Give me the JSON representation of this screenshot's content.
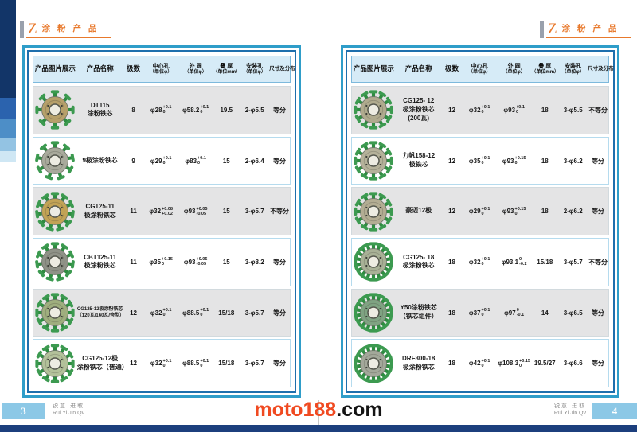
{
  "page_title": {
    "prefix": "Z",
    "label": "涂 粉 产 品"
  },
  "watermark": {
    "brand": "moto188",
    "suffix": ".com"
  },
  "colors": {
    "accent_orange": "#e8792c",
    "watermark_orange": "#f04a21",
    "frame_outer_blue": "#2f9dc9",
    "frame_inner_blue": "#1e6fad",
    "header_bg_blue": "#d6ebf7",
    "row_alt_gray": "#e4e4e5",
    "footer_bar_blue": "#8cc8e6",
    "bottom_bar_navy": "#1c3f7d"
  },
  "table_columns": [
    {
      "key": "product-image",
      "label": "产品图片展示",
      "sub": ""
    },
    {
      "key": "product-name",
      "label": "产品名称",
      "sub": ""
    },
    {
      "key": "pole-count",
      "label": "极数",
      "sub": ""
    },
    {
      "key": "center-hole",
      "label": "中心孔",
      "sub": "（单位φ）"
    },
    {
      "key": "outer-diameter",
      "label": "外 圆",
      "sub": "（单位φ）"
    },
    {
      "key": "thickness",
      "label": "叠 厚",
      "sub": "（单位mm）"
    },
    {
      "key": "mount-holes",
      "label": "安装孔",
      "sub": "（单位φ）"
    },
    {
      "key": "distribution",
      "label": "尺寸及分布",
      "sub": ""
    }
  ],
  "pages": [
    {
      "page_number": "3",
      "footer": {
        "cn": "锐意 进取",
        "en": "Rui Yi Jin Qv"
      },
      "rows": [
        {
          "name": [
            "DT115",
            "涂粉铁芯"
          ],
          "poles": "8",
          "center_hole": {
            "base": "φ28",
            "upper": "+0.1",
            "lower": "0"
          },
          "outer_dia": {
            "base": "φ58.2",
            "upper": "+0.1",
            "lower": "0"
          },
          "thickness": "19.5",
          "mount": "2-φ5.5",
          "dist": "等分",
          "tone": "#b6a06a"
        },
        {
          "name": [
            "9极涂粉铁芯"
          ],
          "poles": "9",
          "center_hole": {
            "base": "φ29",
            "upper": "+0.1",
            "lower": "0"
          },
          "outer_dia": {
            "base": "φ83",
            "upper": "+0.1",
            "lower": "0"
          },
          "thickness": "15",
          "mount": "2-φ6.4",
          "dist": "等分",
          "tone": "#a9aa9c"
        },
        {
          "name": [
            "CG125-11",
            "极涂粉铁芯"
          ],
          "poles": "11",
          "center_hole": {
            "base": "φ32",
            "upper": "+0.08",
            "lower": "+0.02"
          },
          "outer_dia": {
            "base": "φ93",
            "upper": "+0.05",
            "lower": "-0.05"
          },
          "thickness": "15",
          "mount": "3-φ5.7",
          "dist": "不等分",
          "tone": "#c2a355"
        },
        {
          "name": [
            "CBT125-11",
            "极涂粉铁芯"
          ],
          "poles": "11",
          "center_hole": {
            "base": "φ35",
            "upper": "+0.15",
            "lower": "0"
          },
          "outer_dia": {
            "base": "φ93",
            "upper": "+0.05",
            "lower": "-0.05"
          },
          "thickness": "15",
          "mount": "3-φ8.2",
          "dist": "等分",
          "tone": "#8f9287"
        },
        {
          "name": [
            "CG125-12极涂粉铁芯",
            "（120瓦/160瓦/侉型）"
          ],
          "poles": "12",
          "center_hole": {
            "base": "φ32",
            "upper": "+0.1",
            "lower": "0"
          },
          "outer_dia": {
            "base": "φ88.5",
            "upper": "+0.1",
            "lower": "0"
          },
          "thickness": "15/18",
          "mount": "3-φ5.7",
          "dist": "等分",
          "tone": "#9fae7e"
        },
        {
          "name": [
            "CG125-12极",
            "涂粉铁芯（普通）"
          ],
          "poles": "12",
          "center_hole": {
            "base": "φ32",
            "upper": "+0.1",
            "lower": "0"
          },
          "outer_dia": {
            "base": "φ88.5",
            "upper": "+0.1",
            "lower": "0"
          },
          "thickness": "15/18",
          "mount": "3-φ5.7",
          "dist": "等分",
          "tone": "#b3c19a"
        }
      ]
    },
    {
      "page_number": "4",
      "footer": {
        "cn": "锐意 进取",
        "en": "Rui Yi Jin Qv"
      },
      "rows": [
        {
          "name": [
            "CG125- 12",
            "极涂粉铁芯",
            "(200瓦)"
          ],
          "poles": "12",
          "center_hole": {
            "base": "φ32",
            "upper": "+0.1",
            "lower": "0"
          },
          "outer_dia": {
            "base": "φ93",
            "upper": "+0.1",
            "lower": "0"
          },
          "thickness": "18",
          "mount": "3-φ5.5",
          "dist": "不等分",
          "tone": "#b0ab8e"
        },
        {
          "name": [
            "力帆158-12",
            "极铁芯"
          ],
          "poles": "12",
          "center_hole": {
            "base": "φ35",
            "upper": "+0.1",
            "lower": "0"
          },
          "outer_dia": {
            "base": "φ93",
            "upper": "+0.15",
            "lower": "0"
          },
          "thickness": "18",
          "mount": "3-φ6.2",
          "dist": "等分",
          "tone": "#b5b29a"
        },
        {
          "name": [
            "豪迈12极"
          ],
          "poles": "12",
          "center_hole": {
            "base": "φ29",
            "upper": "+0.1",
            "lower": "0"
          },
          "outer_dia": {
            "base": "φ93",
            "upper": "+0.15",
            "lower": "0"
          },
          "thickness": "18",
          "mount": "2-φ6.2",
          "dist": "等分",
          "tone": "#b3ad93"
        },
        {
          "name": [
            "CG125- 18",
            "极涂粉铁芯"
          ],
          "poles": "18",
          "center_hole": {
            "base": "φ32",
            "upper": "+0.1",
            "lower": "0"
          },
          "outer_dia": {
            "base": "φ93.1",
            "upper": "0",
            "lower": "-0.2"
          },
          "thickness": "15/18",
          "mount": "3-φ5.7",
          "dist": "不等分",
          "tone": "#a8b196"
        },
        {
          "name": [
            "Y50涂粉铁芯",
            "（铁芯组件）"
          ],
          "poles": "18",
          "center_hole": {
            "base": "φ37",
            "upper": "+0.1",
            "lower": "0"
          },
          "outer_dia": {
            "base": "φ97",
            "upper": "0",
            "lower": "-0.1"
          },
          "thickness": "14",
          "mount": "3-φ6.5",
          "dist": "等分",
          "tone": "#7fa382"
        },
        {
          "name": [
            "DRF300-18",
            "极涂粉铁芯"
          ],
          "poles": "18",
          "center_hole": {
            "base": "φ42",
            "upper": "+0.1",
            "lower": "0"
          },
          "outer_dia": {
            "base": "φ108.3",
            "upper": "+0.15",
            "lower": "0"
          },
          "thickness": "19.5/27",
          "mount": "3-φ6.6",
          "dist": "等分",
          "tone": "#a3a89a"
        }
      ]
    }
  ]
}
